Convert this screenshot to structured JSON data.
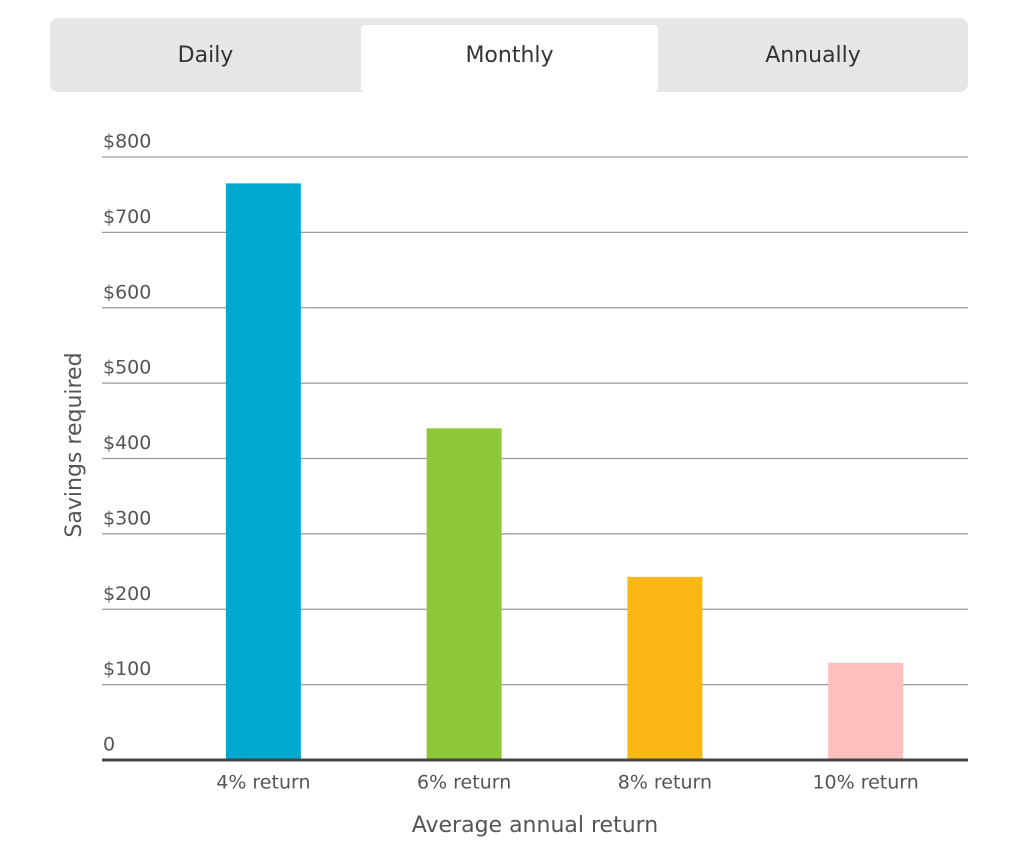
{
  "tabs": [
    "Daily",
    "Monthly",
    "Annually"
  ],
  "active_tab": 1,
  "chart_data": {
    "type": "bar",
    "categories": [
      "4% return",
      "6% return",
      "8% return",
      "10% return"
    ],
    "values": [
      765,
      440,
      243,
      129
    ],
    "colors": [
      "#00a9ce",
      "#8dc936",
      "#fbb713",
      "#ffc0be"
    ],
    "ylim": [
      0,
      800
    ],
    "yticks": [
      0,
      {
        "value": 100,
        "label": "$100"
      },
      {
        "value": 200,
        "label": "$200"
      },
      {
        "value": 300,
        "label": "$300"
      },
      {
        "value": 400,
        "label": "$400"
      },
      {
        "value": 500,
        "label": "$500"
      },
      {
        "value": 600,
        "label": "$600"
      },
      {
        "value": 700,
        "label": "$700"
      },
      {
        "value": 800,
        "label": "$800"
      }
    ],
    "ylabel": "Savings required",
    "xlabel": "Average annual return",
    "grid": true
  }
}
